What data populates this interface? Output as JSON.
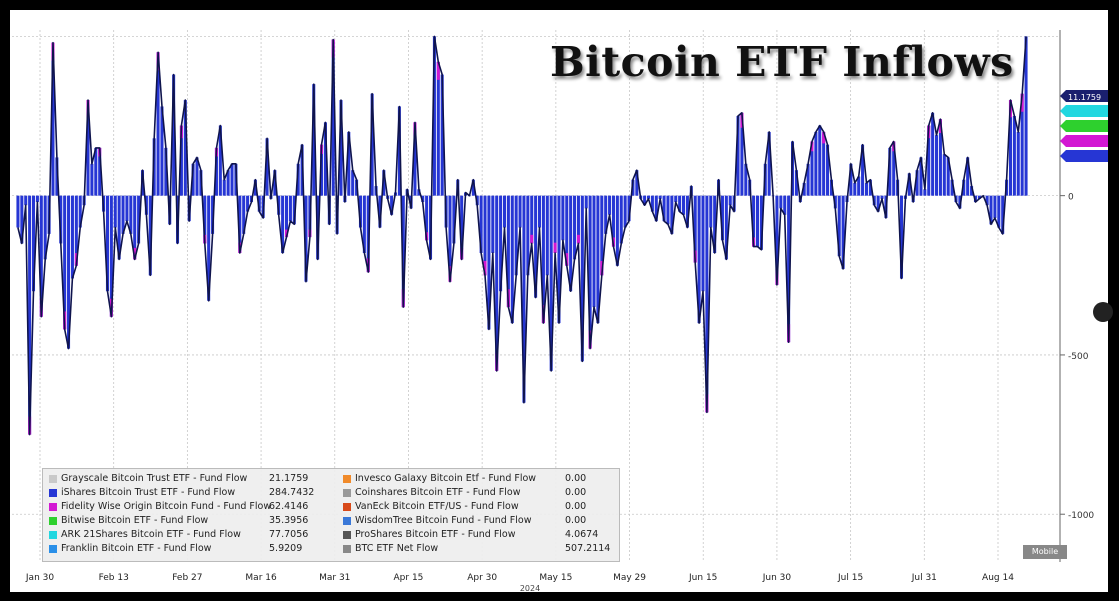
{
  "chart_data": {
    "type": "bar",
    "title": "Bitcoin ETF Inflows",
    "xlabel": "2024",
    "ylabel": "",
    "ylim": [
      -1150,
      520
    ],
    "yticks": [
      0,
      -500,
      -1000
    ],
    "x_ticks": [
      "Jan 30",
      "Feb 13",
      "Feb 27",
      "Mar 16",
      "Mar 31",
      "Apr 15",
      "Apr 30",
      "May 15",
      "May 29",
      "Jun 15",
      "Jun 30",
      "Jul 15",
      "Jul 31",
      "Aug 14"
    ],
    "grid": true,
    "legend_position": "bottom-left",
    "net_flow": [
      -100,
      -150,
      -30,
      -750,
      -300,
      -20,
      -380,
      -200,
      -120,
      480,
      120,
      -150,
      -420,
      -480,
      -260,
      -220,
      -100,
      -30,
      300,
      100,
      150,
      150,
      -50,
      -300,
      -380,
      -100,
      -200,
      -120,
      -80,
      -120,
      -200,
      -150,
      80,
      -60,
      -250,
      180,
      450,
      280,
      150,
      -90,
      380,
      -150,
      220,
      300,
      -80,
      100,
      120,
      80,
      -150,
      -330,
      -120,
      150,
      220,
      50,
      80,
      100,
      100,
      -180,
      -120,
      -50,
      -20,
      50,
      -50,
      -70,
      180,
      -10,
      80,
      -60,
      -180,
      -130,
      -80,
      -90,
      100,
      160,
      -270,
      -130,
      350,
      -200,
      160,
      230,
      -90,
      490,
      -120,
      300,
      -20,
      200,
      80,
      50,
      -100,
      -180,
      -240,
      320,
      30,
      -100,
      80,
      -10,
      -60,
      10,
      280,
      -350,
      20,
      -40,
      230,
      20,
      -20,
      -140,
      -200,
      500,
      420,
      380,
      -100,
      -270,
      -150,
      50,
      -200,
      10,
      0,
      50,
      -30,
      -180,
      -250,
      -420,
      -180,
      -550,
      -300,
      -100,
      -350,
      -400,
      -250,
      -100,
      -650,
      -250,
      -150,
      -320,
      -100,
      -400,
      -250,
      -550,
      -180,
      -400,
      -140,
      -220,
      -300,
      -200,
      -150,
      -520,
      -40,
      -480,
      -350,
      -400,
      -250,
      -120,
      -60,
      -160,
      -220,
      -150,
      -100,
      -80,
      50,
      80,
      -10,
      -30,
      -10,
      -50,
      -80,
      -10,
      -80,
      -90,
      -120,
      -20,
      -50,
      -60,
      -100,
      30,
      -210,
      -400,
      -300,
      -680,
      -100,
      -180,
      50,
      -140,
      -200,
      -30,
      -50,
      250,
      260,
      100,
      50,
      -160,
      -160,
      -170,
      100,
      200,
      0,
      -280,
      -40,
      -60,
      -460,
      170,
      80,
      -20,
      40,
      100,
      170,
      200,
      220,
      200,
      160,
      50,
      -40,
      -190,
      -230,
      -20,
      100,
      40,
      60,
      160,
      40,
      50,
      -30,
      -50,
      -10,
      -70,
      150,
      170,
      50,
      -260,
      -10,
      70,
      -20,
      80,
      120,
      20,
      220,
      260,
      190,
      240,
      130,
      120,
      50,
      -20,
      -40,
      50,
      120,
      30,
      -20,
      -10,
      0,
      -30,
      -90,
      -70,
      -100,
      -120,
      50,
      300,
      250,
      200,
      320,
      500
    ],
    "series": [
      {
        "name": "Grayscale Bitcoin Trust ETF - Fund Flow",
        "last": "21.1759"
      },
      {
        "name": "iShares Bitcoin Trust ETF - Fund Flow",
        "last": "284.7432"
      },
      {
        "name": "Fidelity Wise Origin Bitcoin Fund - Fund Flow",
        "last": "62.4146"
      },
      {
        "name": "Bitwise Bitcoin ETF - Fund Flow",
        "last": "35.3956"
      },
      {
        "name": "ARK 21Shares Bitcoin ETF - Fund Flow",
        "last": "77.7056"
      },
      {
        "name": "Franklin Bitcoin ETF - Fund Flow",
        "last": "5.9209"
      },
      {
        "name": "Invesco Galaxy Bitcoin Etf - Fund Flow",
        "last": "0.00"
      },
      {
        "name": "Coinshares Bitcoin ETF - Fund Flow",
        "last": "0.00"
      },
      {
        "name": "VanEck Bitcoin ETF/US - Fund Flow",
        "last": "0.00"
      },
      {
        "name": "WisdomTree Bitcoin Fund - Fund Flow",
        "last": "0.00"
      },
      {
        "name": "ProShares Bitcoin ETF - Fund Flow",
        "last": "4.0674"
      },
      {
        "name": "BTC ETF Net Flow",
        "last": "507.2114"
      }
    ],
    "right_tags": [
      "11.1759"
    ],
    "badge": "Mobile"
  },
  "colors": {
    "iShares": "#2636d4",
    "grid": "#c7c7c7",
    "line": "#0f144d",
    "stripe": "#ffffff",
    "tag_cyan": "#22d7e0",
    "tag_green": "#2ed02e",
    "tag_magenta": "#d318d3",
    "tag_blue": "#2636d4",
    "tag_navy": "#1a1f6e"
  },
  "legend_colors": [
    "#c9c9c9",
    "#2636d4",
    "#d318d3",
    "#2ed02e",
    "#22d7e0",
    "#2a8fe8",
    "#f08a2a",
    "#999999",
    "#d84a1a",
    "#3a78d8",
    "#555555",
    "#888888"
  ]
}
